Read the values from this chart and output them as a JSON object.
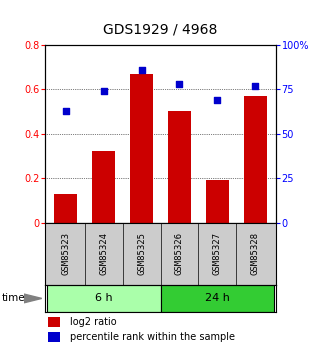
{
  "title": "GDS1929 / 4968",
  "categories": [
    "GSM85323",
    "GSM85324",
    "GSM85325",
    "GSM85326",
    "GSM85327",
    "GSM85328"
  ],
  "log2_ratio": [
    0.13,
    0.32,
    0.67,
    0.5,
    0.19,
    0.57
  ],
  "percentile_rank": [
    63,
    74,
    86,
    78,
    69,
    77
  ],
  "groups": [
    {
      "label": "6 h",
      "indices": [
        0,
        1,
        2
      ],
      "color": "#aaffaa"
    },
    {
      "label": "24 h",
      "indices": [
        3,
        4,
        5
      ],
      "color": "#33cc33"
    }
  ],
  "left_ylim": [
    0,
    0.8
  ],
  "right_ylim": [
    0,
    100
  ],
  "left_yticks": [
    0,
    0.2,
    0.4,
    0.6,
    0.8
  ],
  "right_yticks": [
    0,
    25,
    50,
    75,
    100
  ],
  "left_yticklabels": [
    "0",
    "0.2",
    "0.4",
    "0.6",
    "0.8"
  ],
  "right_yticklabels": [
    "0",
    "25",
    "50",
    "75",
    "100%"
  ],
  "bar_color": "#cc0000",
  "scatter_color": "#0000cc",
  "bar_width": 0.6,
  "bg_color": "#ffffff",
  "plot_bg_color": "#ffffff",
  "label_bg_color": "#cccccc",
  "time_label": "time",
  "legend_bar_label": "log2 ratio",
  "legend_scatter_label": "percentile rank within the sample",
  "title_fontsize": 10,
  "tick_fontsize": 7,
  "label_fontsize": 6.5,
  "group_fontsize": 8,
  "legend_fontsize": 7
}
